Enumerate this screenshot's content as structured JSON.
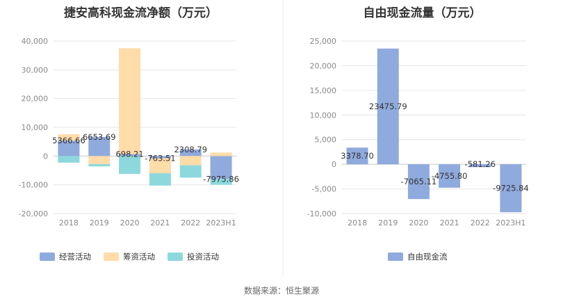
{
  "footer": "数据来源：恒生聚源",
  "chart_data": [
    {
      "type": "bar",
      "stacked": true,
      "title": "捷安高科现金流净额（万元）",
      "categories": [
        "2018",
        "2019",
        "2020",
        "2021",
        "2022",
        "2023H1"
      ],
      "ylim": [
        -20000,
        40000
      ],
      "yticks": [
        -20000,
        -10000,
        0,
        10000,
        20000,
        30000,
        40000
      ],
      "ytick_labels": [
        "-20,000",
        "-10,000",
        "0",
        "10,000",
        "20,000",
        "30,000",
        "40,000"
      ],
      "series": [
        {
          "name": "经营活动",
          "color": "#8faadc",
          "values": [
            5366.66,
            6653.69,
            698.21,
            -763.51,
            2308.79,
            -7975.86
          ]
        },
        {
          "name": "筹资活动",
          "color": "#ffdca8",
          "values": [
            2200,
            -2800,
            36800,
            -5200,
            -3200,
            1200
          ]
        },
        {
          "name": "投资活动",
          "color": "#8dd8dd",
          "values": [
            -2300,
            -800,
            -6200,
            -4300,
            -4300,
            -2000
          ]
        }
      ],
      "data_labels": [
        "5366.66",
        "6653.69",
        "698.21",
        "-763.51",
        "2308.79",
        "-7975.86"
      ],
      "legend_position": "bottom"
    },
    {
      "type": "bar",
      "title": "自由现金流量（万元）",
      "categories": [
        "2018",
        "2019",
        "2020",
        "2021",
        "2022",
        "2023H1"
      ],
      "ylim": [
        -10000,
        25000
      ],
      "yticks": [
        -10000,
        -5000,
        0,
        5000,
        10000,
        15000,
        20000,
        25000
      ],
      "ytick_labels": [
        "-10,000",
        "-5,000",
        "0",
        "5,000",
        "10,000",
        "15,000",
        "20,000",
        "25,000"
      ],
      "series": [
        {
          "name": "自由现金流",
          "color": "#8faadc",
          "values": [
            3378.7,
            23475.79,
            -7065.11,
            -4755.8,
            -581.26,
            -9725.84
          ]
        }
      ],
      "data_labels": [
        "3378.70",
        "23475.79",
        "-7065.11",
        "-4755.80",
        "-581.26",
        "-9725.84"
      ],
      "legend_position": "bottom"
    }
  ]
}
